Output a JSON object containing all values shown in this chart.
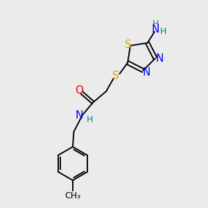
{
  "bg_color": "#ebebeb",
  "bond_color": "#000000",
  "colors": {
    "S": "#ccaa00",
    "N": "#0000ff",
    "O": "#ff0000",
    "C": "#000000",
    "H": "#008080"
  }
}
